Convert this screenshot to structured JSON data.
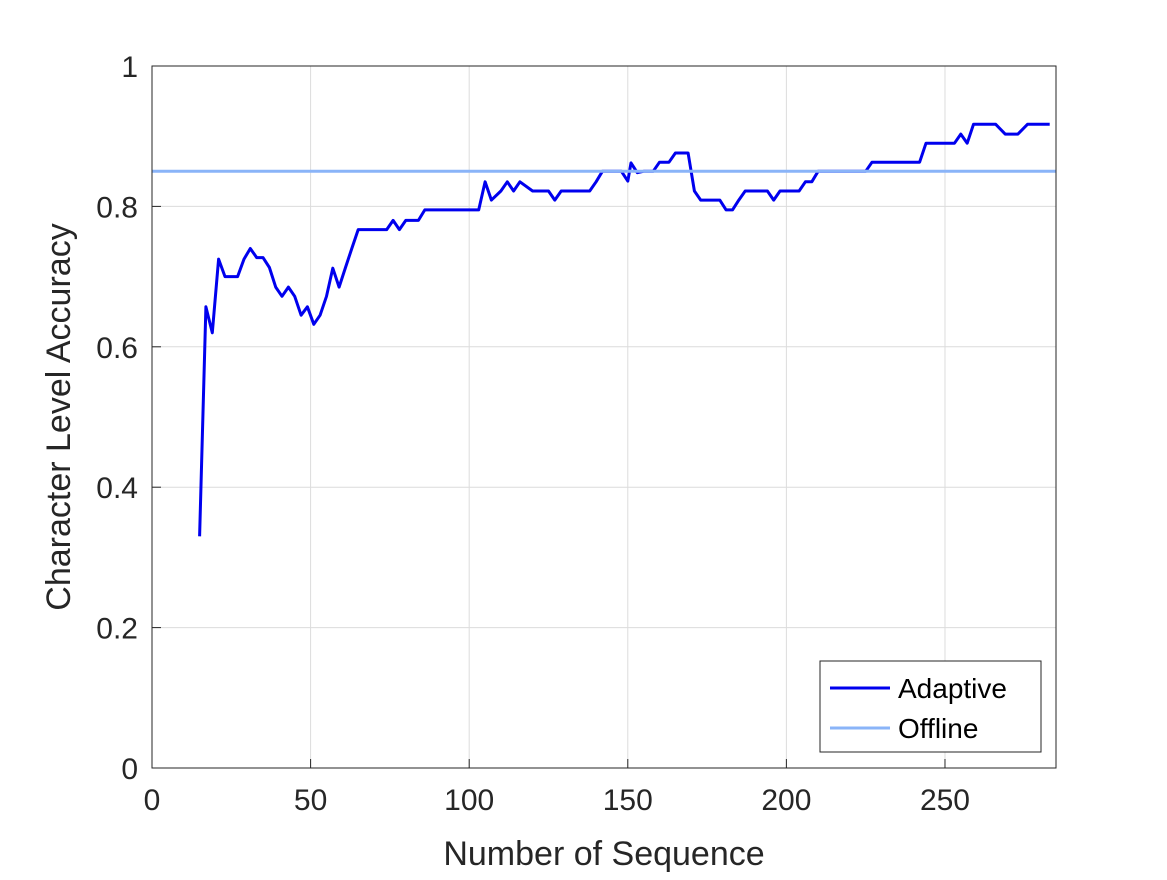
{
  "chart_data": {
    "type": "line",
    "title": "",
    "xlabel": "Number of Sequence",
    "ylabel": "Character Level Accuracy",
    "xlim": [
      0,
      285
    ],
    "ylim": [
      0,
      1
    ],
    "xticks": [
      0,
      50,
      100,
      150,
      200,
      250
    ],
    "yticks": [
      0,
      0.2,
      0.4,
      0.6,
      0.8,
      1
    ],
    "xtick_labels": [
      "0",
      "50",
      "100",
      "150",
      "200",
      "250"
    ],
    "ytick_labels": [
      "0",
      "0.2",
      "0.4",
      "0.6",
      "0.8",
      "1"
    ],
    "grid": true,
    "legend_position": "bottom-right",
    "series": [
      {
        "name": "Adaptive",
        "color": "#0000ee",
        "x": [
          15,
          17,
          19,
          21,
          23,
          25,
          27,
          29,
          31,
          33,
          35,
          37,
          39,
          41,
          43,
          45,
          47,
          49,
          51,
          53,
          55,
          57,
          59,
          61,
          63,
          65,
          67,
          70,
          74,
          76,
          78,
          80,
          82,
          84,
          86,
          90,
          100,
          103,
          105,
          107,
          110,
          112,
          114,
          116,
          120,
          125,
          127,
          129,
          131,
          135,
          138,
          140,
          142,
          145,
          148,
          150,
          151,
          153,
          155,
          158,
          160,
          163,
          165,
          167,
          169,
          171,
          173,
          176,
          179,
          181,
          183,
          185,
          187,
          190,
          192,
          194,
          196,
          198,
          200,
          202,
          204,
          206,
          208,
          210,
          215,
          220,
          225,
          227,
          230,
          235,
          240,
          242,
          244,
          246,
          250,
          253,
          255,
          257,
          259,
          262,
          264,
          266,
          269,
          271,
          273,
          276,
          280,
          283
        ],
        "y": [
          0.33,
          0.657,
          0.62,
          0.725,
          0.7,
          0.7,
          0.7,
          0.725,
          0.74,
          0.727,
          0.727,
          0.713,
          0.685,
          0.672,
          0.685,
          0.672,
          0.645,
          0.657,
          0.632,
          0.645,
          0.672,
          0.712,
          0.685,
          0.713,
          0.74,
          0.767,
          0.767,
          0.767,
          0.767,
          0.78,
          0.767,
          0.78,
          0.78,
          0.78,
          0.795,
          0.795,
          0.795,
          0.795,
          0.835,
          0.809,
          0.822,
          0.835,
          0.822,
          0.835,
          0.822,
          0.822,
          0.809,
          0.822,
          0.822,
          0.822,
          0.822,
          0.835,
          0.85,
          0.85,
          0.85,
          0.836,
          0.862,
          0.848,
          0.85,
          0.85,
          0.863,
          0.863,
          0.876,
          0.876,
          0.876,
          0.822,
          0.809,
          0.809,
          0.809,
          0.795,
          0.795,
          0.809,
          0.822,
          0.822,
          0.822,
          0.822,
          0.809,
          0.822,
          0.822,
          0.822,
          0.822,
          0.835,
          0.835,
          0.85,
          0.85,
          0.85,
          0.85,
          0.863,
          0.863,
          0.863,
          0.863,
          0.863,
          0.89,
          0.89,
          0.89,
          0.89,
          0.903,
          0.89,
          0.917,
          0.917,
          0.917,
          0.917,
          0.903,
          0.903,
          0.903,
          0.917,
          0.917,
          0.917
        ]
      },
      {
        "name": "Offline",
        "color": "#8ab4f8",
        "x": [
          0,
          285
        ],
        "y": [
          0.85,
          0.85
        ]
      }
    ]
  }
}
